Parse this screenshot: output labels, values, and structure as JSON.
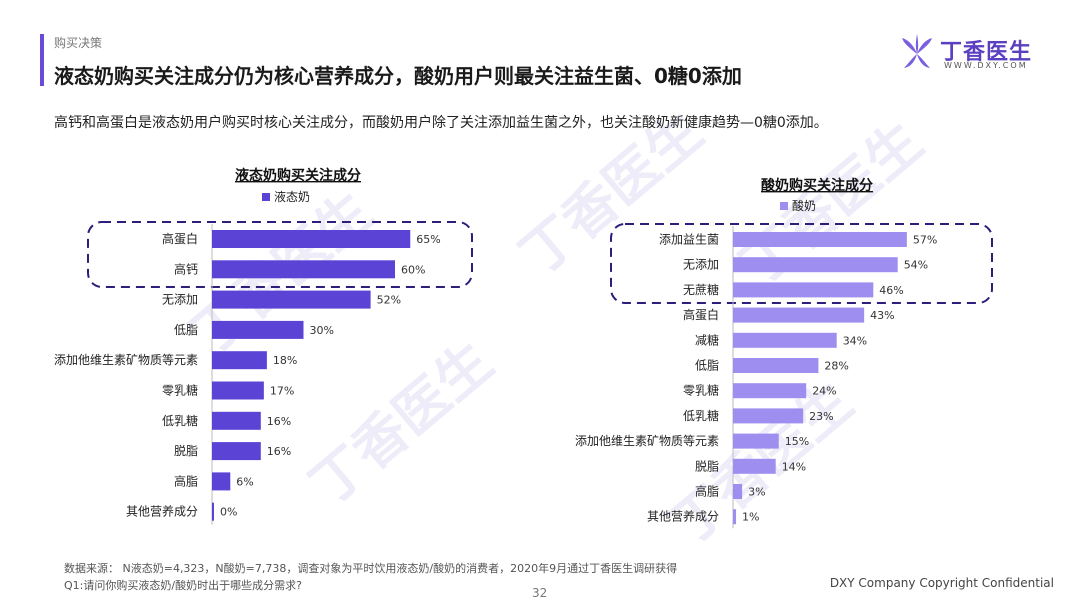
{
  "header": {
    "section": "购买决策",
    "title": "液态奶购买关注成分仍为核心营养成分，酸奶用户则最关注益生菌、0糖0添加"
  },
  "logo": {
    "name": "丁香医生",
    "url": "WWW.DXY.COM"
  },
  "watermark": {
    "text": "丁香医生",
    "url": "WWW.DXY.COM"
  },
  "subtitle": "高钙和高蛋白是液态奶用户购买时核心关注成分，而酸奶用户除了关注添加益生菌之外，也关注酸奶新健康趋势—0糖0添加。",
  "colors": {
    "accent": "#6a4bd6",
    "liquid_bar": "#5b43d6",
    "yogurt_bar": "#9d8ef0",
    "highlight_box": "#2a1f7a"
  },
  "chart_data": [
    {
      "type": "bar",
      "orientation": "horizontal",
      "title": "液态奶购买关注成分",
      "legend": "液态奶",
      "categories": [
        "高蛋白",
        "高钙",
        "无添加",
        "低脂",
        "添加他维生素矿物质等元素",
        "零乳糖",
        "低乳糖",
        "脱脂",
        "高脂",
        "其他营养成分"
      ],
      "values": [
        65,
        60,
        52,
        30,
        18,
        17,
        16,
        16,
        6,
        0
      ],
      "labels": [
        "65%",
        "60%",
        "52%",
        "30%",
        "18%",
        "17%",
        "16%",
        "16%",
        "6%",
        "0%"
      ],
      "highlighted": [
        "高蛋白",
        "高钙"
      ]
    },
    {
      "type": "bar",
      "orientation": "horizontal",
      "title": "酸奶购买关注成分",
      "legend": "酸奶",
      "categories": [
        "添加益生菌",
        "无添加",
        "无蔗糖",
        "高蛋白",
        "减糖",
        "低脂",
        "零乳糖",
        "低乳糖",
        "添加他维生素矿物质等元素",
        "脱脂",
        "高脂",
        "其他营养成分"
      ],
      "values": [
        57,
        54,
        46,
        43,
        34,
        28,
        24,
        23,
        15,
        14,
        3,
        1
      ],
      "labels": [
        "57%",
        "54%",
        "46%",
        "43%",
        "34%",
        "28%",
        "24%",
        "23%",
        "15%",
        "14%",
        "3%",
        "1%"
      ],
      "highlighted": [
        "添加益生菌",
        "无添加",
        "无蔗糖"
      ]
    }
  ],
  "footer": {
    "source": "数据来源： N液态奶=4,323，N酸奶=7,738，调查对象为平时饮用液态奶/酸奶的消费者，2020年9月通过丁香医生调研获得",
    "question": "Q1:请问你购买液态奶/酸奶时出于哪些成分需求?",
    "page": "32",
    "copyright": "DXY Company Copyright Confidential"
  }
}
